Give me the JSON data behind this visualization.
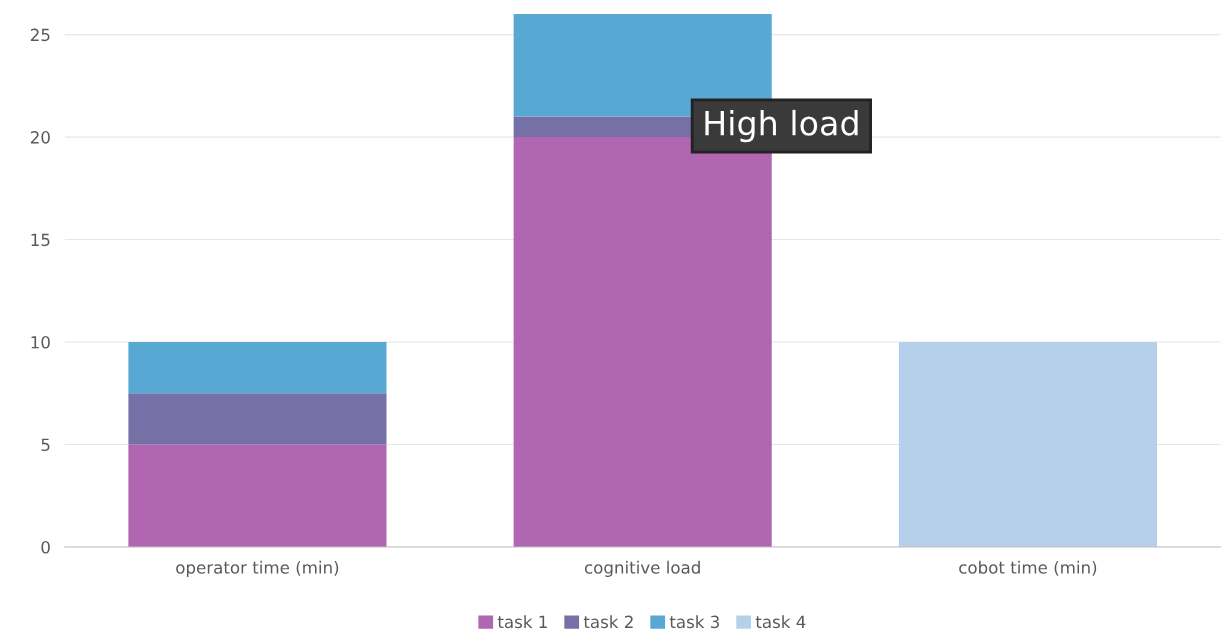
{
  "chart_data": {
    "type": "bar",
    "stacked": true,
    "categories": [
      "operator time (min)",
      "cognitive load",
      "cobot time (min)"
    ],
    "series": [
      {
        "name": "task 1",
        "color": "#b066b0",
        "values": [
          5,
          20,
          0
        ]
      },
      {
        "name": "task 2",
        "color": "#7570a6",
        "values": [
          2.5,
          1,
          0
        ]
      },
      {
        "name": "task 3",
        "color": "#58a8d4",
        "values": [
          2.5,
          5,
          0
        ]
      },
      {
        "name": "task 4",
        "color": "#b6cfea",
        "values": [
          0,
          0,
          10
        ]
      }
    ],
    "ylim": [
      0,
      26
    ],
    "yticks": [
      0,
      5,
      10,
      15,
      20,
      25
    ],
    "grid": "y",
    "legend": "bottom",
    "annotations": [
      "High load"
    ]
  }
}
